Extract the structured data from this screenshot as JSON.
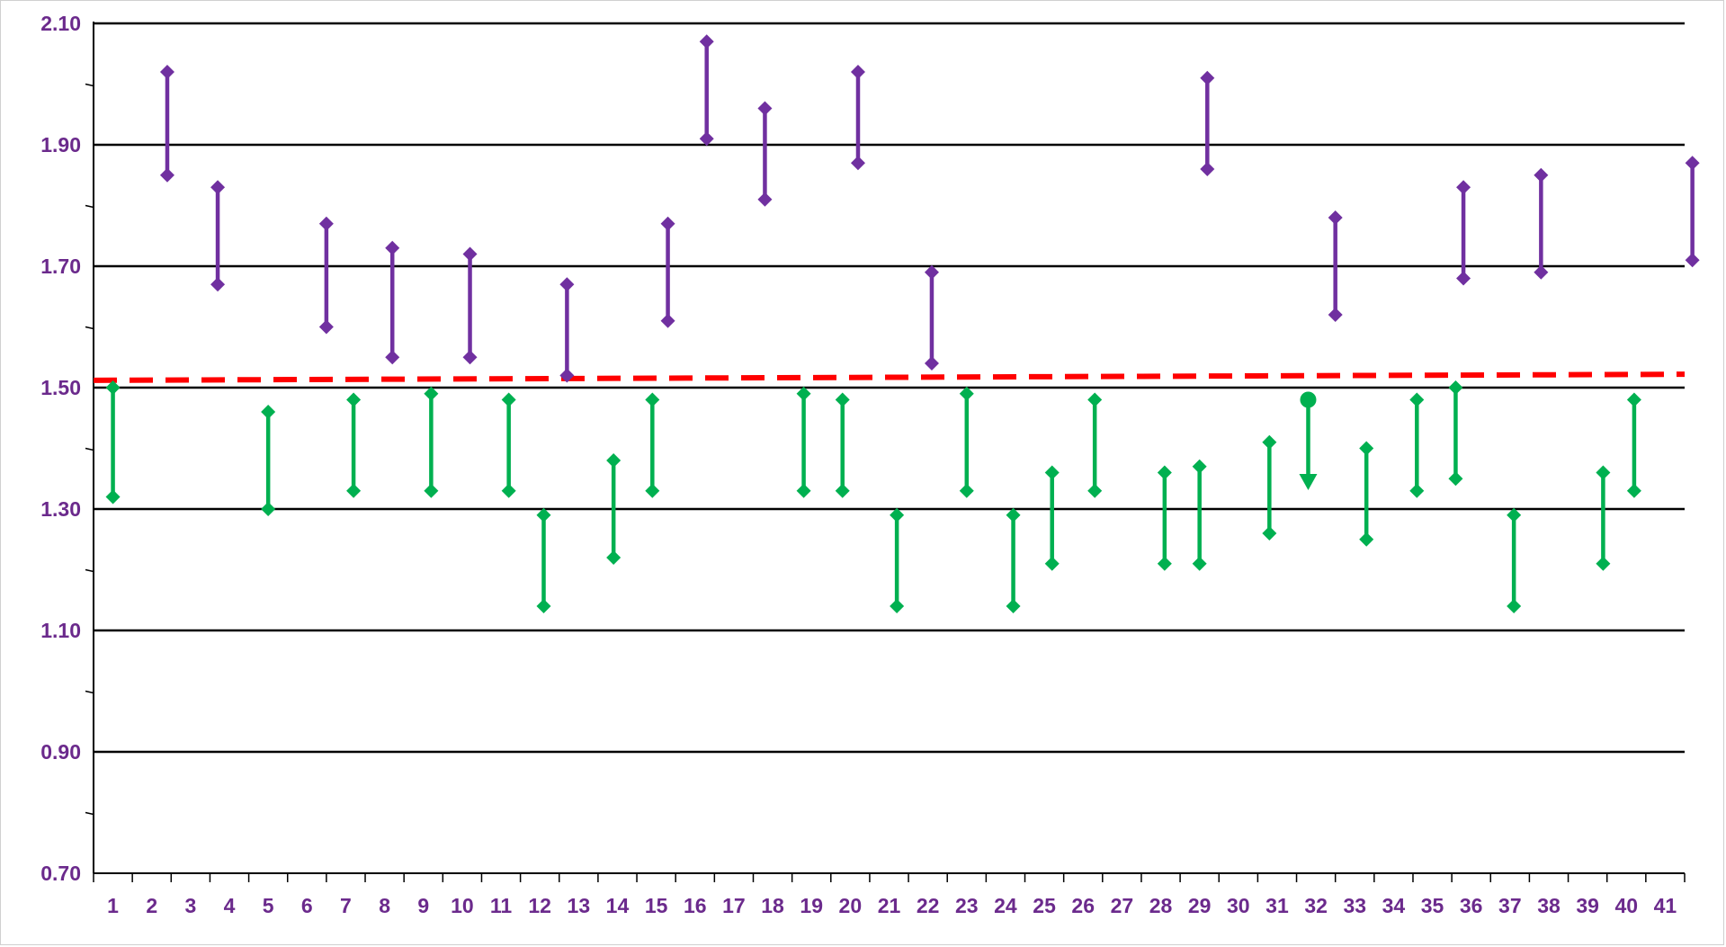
{
  "chart_data": {
    "type": "range-markers",
    "title": "",
    "xlabel": "",
    "ylabel": "",
    "ylim": [
      0.7,
      2.1
    ],
    "y_tick_labels": [
      "0.70",
      "0.90",
      "1.10",
      "1.30",
      "1.50",
      "1.70",
      "1.90",
      "2.10"
    ],
    "x_tick_labels": [
      "1",
      "2",
      "3",
      "4",
      "5",
      "6",
      "7",
      "8",
      "9",
      "10",
      "11",
      "12",
      "13",
      "14",
      "15",
      "16",
      "17",
      "18",
      "19",
      "20",
      "21",
      "22",
      "23",
      "24",
      "25",
      "26",
      "27",
      "28",
      "29",
      "30",
      "31",
      "32",
      "33",
      "34",
      "35",
      "36",
      "37",
      "38",
      "39",
      "40",
      "41"
    ],
    "x_range": [
      0.5,
      41.5
    ],
    "grid": true,
    "colors": {
      "above_series": "#7030a0",
      "below_series": "#00b050",
      "reference_line": "#ff0000",
      "gridline": "#000000",
      "tick_text": "#6b2a8c"
    },
    "reference_line": {
      "style": "dashed",
      "from": [
        0.5,
        1.512
      ],
      "to": [
        41.5,
        1.522
      ]
    },
    "above_series": [
      {
        "x": 2.4,
        "high": 2.02,
        "low": 1.85
      },
      {
        "x": 3.7,
        "high": 1.83,
        "low": 1.67
      },
      {
        "x": 6.5,
        "high": 1.77,
        "low": 1.6
      },
      {
        "x": 8.2,
        "high": 1.73,
        "low": 1.55
      },
      {
        "x": 10.2,
        "high": 1.72,
        "low": 1.55
      },
      {
        "x": 12.7,
        "high": 1.67,
        "low": 1.52
      },
      {
        "x": 15.3,
        "high": 1.77,
        "low": 1.61
      },
      {
        "x": 16.3,
        "high": 2.07,
        "low": 1.91
      },
      {
        "x": 17.8,
        "high": 1.96,
        "low": 1.81
      },
      {
        "x": 20.2,
        "high": 2.02,
        "low": 1.87
      },
      {
        "x": 22.1,
        "high": 1.69,
        "low": 1.54
      },
      {
        "x": 29.2,
        "high": 2.01,
        "low": 1.86
      },
      {
        "x": 32.5,
        "high": 1.78,
        "low": 1.62
      },
      {
        "x": 35.8,
        "high": 1.83,
        "low": 1.68
      },
      {
        "x": 37.8,
        "high": 1.85,
        "low": 1.69
      },
      {
        "x": 41.7,
        "high": 1.87,
        "low": 1.71
      }
    ],
    "below_series": [
      {
        "x": 1.0,
        "high": 1.5,
        "low": 1.32
      },
      {
        "x": 5.0,
        "high": 1.46,
        "low": 1.3
      },
      {
        "x": 7.2,
        "high": 1.48,
        "low": 1.33
      },
      {
        "x": 9.2,
        "high": 1.49,
        "low": 1.33
      },
      {
        "x": 11.2,
        "high": 1.48,
        "low": 1.33
      },
      {
        "x": 12.1,
        "high": 1.29,
        "low": 1.14
      },
      {
        "x": 13.9,
        "high": 1.38,
        "low": 1.22
      },
      {
        "x": 14.9,
        "high": 1.48,
        "low": 1.33
      },
      {
        "x": 18.8,
        "high": 1.49,
        "low": 1.33
      },
      {
        "x": 19.8,
        "high": 1.48,
        "low": 1.33
      },
      {
        "x": 21.2,
        "high": 1.29,
        "low": 1.14
      },
      {
        "x": 23.0,
        "high": 1.49,
        "low": 1.33
      },
      {
        "x": 24.2,
        "high": 1.29,
        "low": 1.14
      },
      {
        "x": 25.2,
        "high": 1.36,
        "low": 1.21
      },
      {
        "x": 26.3,
        "high": 1.48,
        "low": 1.33
      },
      {
        "x": 28.1,
        "high": 1.36,
        "low": 1.21
      },
      {
        "x": 29.0,
        "high": 1.37,
        "low": 1.21
      },
      {
        "x": 30.8,
        "high": 1.41,
        "low": 1.26
      },
      {
        "x": 31.8,
        "high": 1.48,
        "low": 1.34,
        "marker_top": "circle",
        "marker_bottom": "arrow"
      },
      {
        "x": 33.3,
        "high": 1.4,
        "low": 1.25
      },
      {
        "x": 34.6,
        "high": 1.48,
        "low": 1.33
      },
      {
        "x": 35.6,
        "high": 1.5,
        "low": 1.35
      },
      {
        "x": 37.1,
        "high": 1.29,
        "low": 1.14
      },
      {
        "x": 39.4,
        "high": 1.36,
        "low": 1.21
      },
      {
        "x": 40.2,
        "high": 1.48,
        "low": 1.33
      }
    ]
  }
}
